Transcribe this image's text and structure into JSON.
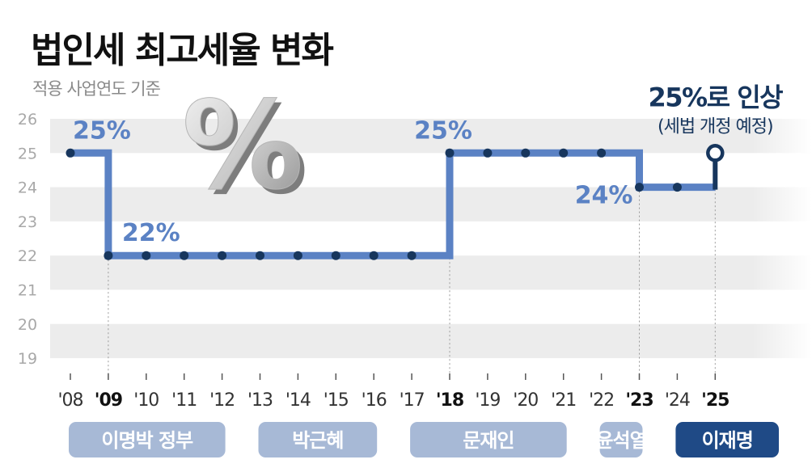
{
  "title": "법인세 최고세율 변화",
  "subtitle": "적용 사업연도 기준",
  "colors": {
    "line": "#5b82c4",
    "accent": "#17365d",
    "band": "#ececec",
    "axis_text": "#a8a8a8",
    "gov_bar": "#a7b9d6",
    "gov_bar_current": "#1f4a86"
  },
  "icon": "percent-symbol-3d",
  "chart_data": {
    "type": "line",
    "step": true,
    "title": "법인세 최고세율 변화",
    "subtitle": "적용 사업연도 기준",
    "x": [
      "'08",
      "'09",
      "'10",
      "'11",
      "'12",
      "'13",
      "'14",
      "'15",
      "'16",
      "'17",
      "'18",
      "'19",
      "'20",
      "'21",
      "'22",
      "'23",
      "'24",
      "'25"
    ],
    "x_emphasized": [
      "'09",
      "'18",
      "'23",
      "'25"
    ],
    "series": [
      {
        "values": [
          25,
          22,
          22,
          22,
          22,
          22,
          22,
          22,
          22,
          22,
          25,
          25,
          25,
          25,
          25,
          24,
          24,
          25
        ]
      }
    ],
    "y_ticks": [
      "26",
      "25",
      "24",
      "23",
      "22",
      "21",
      "20",
      "19"
    ],
    "ylim": [
      19,
      26
    ],
    "grid": "alternating-bands",
    "annotations": [
      {
        "text": "25%",
        "x": "'09",
        "y": 25
      },
      {
        "text": "22%",
        "x": "'10",
        "y": 22
      },
      {
        "text": "25%",
        "x": "'18",
        "y": 25
      },
      {
        "text": "24%",
        "x": "'23",
        "y": 24
      },
      {
        "text": "25%로 인상",
        "sub": "(세법 개정 예정)",
        "x": "'25",
        "y": 25
      }
    ],
    "periods": [
      {
        "label": "이명박 정부",
        "from": "'08",
        "to": "'12"
      },
      {
        "label": "박근혜",
        "from": "'13",
        "to": "'16"
      },
      {
        "label": "문재인",
        "from": "'17",
        "to": "'21"
      },
      {
        "label": "윤석열",
        "from": "'22",
        "to": "'23"
      },
      {
        "label": "이재명",
        "from": "'24",
        "to": "'25",
        "current": true
      }
    ]
  }
}
